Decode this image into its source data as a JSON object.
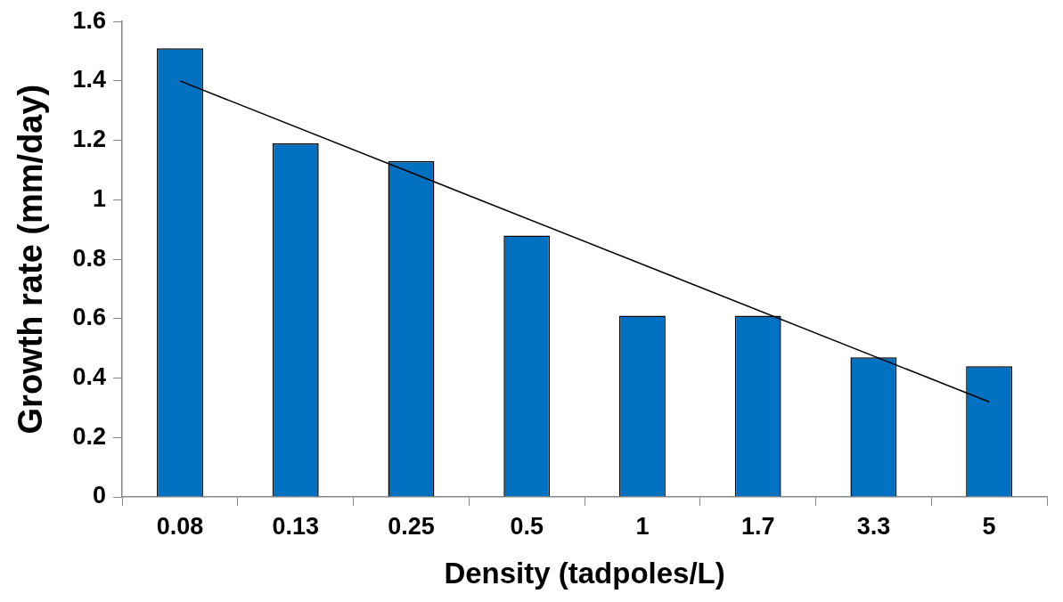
{
  "chart_data": {
    "type": "bar",
    "xlabel": "Density (tadpoles/L)",
    "ylabel": "Growth rate (mm/day)",
    "categories": [
      "0.08",
      "0.13",
      "0.25",
      "0.5",
      "1",
      "1.7",
      "3.3",
      "5"
    ],
    "series": [
      {
        "color": "#0070c0",
        "values": [
          1.51,
          1.19,
          1.13,
          0.88,
          0.61,
          0.61,
          0.47,
          0.44
        ]
      },
      {
        "type": "line",
        "color": "#000000",
        "x": [
          "0.08",
          "5"
        ],
        "values": [
          1.4,
          0.32
        ]
      }
    ],
    "ylim": [
      0,
      1.6
    ],
    "yticks": [
      0,
      0.2,
      0.4,
      0.6,
      0.8,
      1,
      1.2,
      1.4,
      1.6
    ],
    "grid": false,
    "legend": false,
    "marker": "none",
    "line_style": "solid"
  }
}
